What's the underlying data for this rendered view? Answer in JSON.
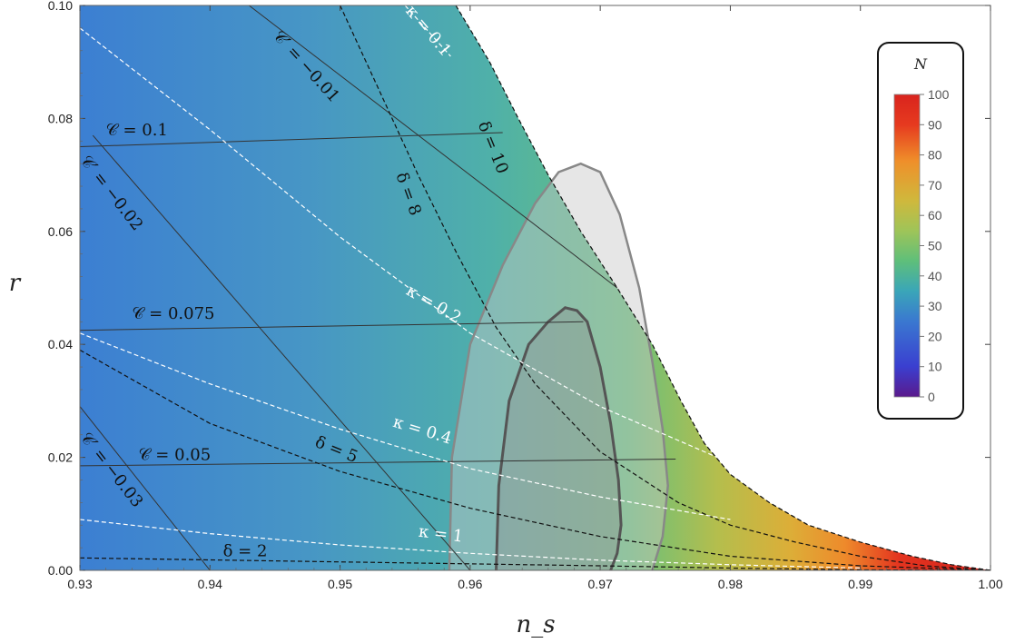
{
  "chart_data": {
    "type": "heatmap",
    "xlabel": "n_s",
    "ylabel": "r",
    "xlim": [
      0.93,
      1.0
    ],
    "ylim": [
      0.0,
      0.1
    ],
    "x_ticks": [
      "0.93",
      "0.94",
      "0.95",
      "0.96",
      "0.97",
      "0.98",
      "0.99",
      "1.00"
    ],
    "y_ticks": [
      "0.00",
      "0.02",
      "0.04",
      "0.06",
      "0.08",
      "0.10"
    ],
    "colorbar": {
      "title": "N",
      "range": [
        0,
        100
      ],
      "ticks": [
        "0",
        "10",
        "20",
        "30",
        "40",
        "50",
        "60",
        "70",
        "80",
        "90",
        "100"
      ],
      "colors": [
        "#5a1a8c",
        "#3a3fd0",
        "#3a78d0",
        "#3aa6b8",
        "#5fbf7a",
        "#9fc458",
        "#d0b83c",
        "#ef8f2a",
        "#e63a1f",
        "#d9241e"
      ]
    },
    "boundary": {
      "name": "delta = 10 edge",
      "x": [
        0.9589,
        0.9615,
        0.9637,
        0.966,
        0.9685,
        0.9713,
        0.974,
        0.9762,
        0.978,
        0.98,
        0.983,
        0.986,
        0.99,
        0.994,
        0.997,
        1.0
      ],
      "y": [
        0.1,
        0.09,
        0.08,
        0.07,
        0.06,
        0.05,
        0.04,
        0.03,
        0.0225,
        0.017,
        0.012,
        0.008,
        0.005,
        0.0025,
        0.001,
        0.0
      ]
    },
    "series": [
      {
        "name": "C = 0.1",
        "style": "solid",
        "x": [
          0.93,
          0.9625
        ],
        "y": [
          0.075,
          0.0775
        ]
      },
      {
        "name": "C = 0.075",
        "style": "solid",
        "x": [
          0.93,
          0.9687
        ],
        "y": [
          0.0425,
          0.044
        ]
      },
      {
        "name": "C = 0.05",
        "style": "solid",
        "x": [
          0.93,
          0.9758
        ],
        "y": [
          0.0185,
          0.0197
        ]
      },
      {
        "name": "C' = -0.01",
        "style": "solid",
        "x": [
          0.943,
          0.9713
        ],
        "y": [
          0.1,
          0.05
        ]
      },
      {
        "name": "C' = -0.02",
        "style": "solid",
        "x": [
          0.931,
          0.96
        ],
        "y": [
          0.077,
          0.0
        ]
      },
      {
        "name": "C' = -0.03",
        "style": "solid",
        "x": [
          0.93,
          0.94
        ],
        "y": [
          0.029,
          0.0
        ]
      },
      {
        "name": "delta = 2",
        "style": "dashed",
        "x": [
          0.93,
          0.95,
          0.97,
          0.98,
          0.99,
          1.0
        ],
        "y": [
          0.0022,
          0.0015,
          0.0008,
          0.0004,
          0.0001,
          0.0
        ]
      },
      {
        "name": "delta = 5",
        "style": "dashed",
        "x": [
          0.93,
          0.94,
          0.95,
          0.96,
          0.97,
          0.98,
          0.99,
          1.0
        ],
        "y": [
          0.039,
          0.026,
          0.0175,
          0.011,
          0.006,
          0.0025,
          0.0008,
          0.0
        ]
      },
      {
        "name": "delta = 8",
        "style": "dashed",
        "x": [
          0.95,
          0.953,
          0.956,
          0.959,
          0.962,
          0.965,
          0.97,
          0.976,
          0.98,
          0.985,
          0.99,
          0.995,
          1.0
        ],
        "y": [
          0.1,
          0.085,
          0.07,
          0.056,
          0.043,
          0.033,
          0.021,
          0.012,
          0.008,
          0.005,
          0.0025,
          0.0008,
          0.0
        ]
      },
      {
        "name": "kappa = 0.1",
        "style": "dashed-white",
        "x": [
          0.955,
          0.9585
        ],
        "y": [
          0.1,
          0.091
        ]
      },
      {
        "name": "kappa = 0.2",
        "style": "dashed-white",
        "x": [
          0.93,
          0.94,
          0.95,
          0.96,
          0.97,
          0.98
        ],
        "y": [
          0.096,
          0.078,
          0.059,
          0.042,
          0.029,
          0.019
        ]
      },
      {
        "name": "kappa = 0.4",
        "style": "dashed-white",
        "x": [
          0.93,
          0.94,
          0.95,
          0.96,
          0.97,
          0.98
        ],
        "y": [
          0.042,
          0.033,
          0.025,
          0.018,
          0.013,
          0.009
        ]
      },
      {
        "name": "kappa = 1",
        "style": "dashed-white",
        "x": [
          0.93,
          0.94,
          0.95,
          0.96,
          0.97,
          0.98,
          0.99
        ],
        "y": [
          0.009,
          0.0065,
          0.0045,
          0.003,
          0.0018,
          0.001,
          0.0004
        ]
      }
    ],
    "regions": [
      {
        "name": "outer contour",
        "color": "#888888",
        "x": [
          0.9584,
          0.9586,
          0.96,
          0.9625,
          0.965,
          0.9668,
          0.9685,
          0.97,
          0.9715,
          0.973,
          0.974,
          0.9748,
          0.9752,
          0.9748,
          0.974
        ],
        "y": [
          0.0,
          0.02,
          0.04,
          0.054,
          0.065,
          0.0705,
          0.072,
          0.0705,
          0.063,
          0.05,
          0.037,
          0.025,
          0.015,
          0.006,
          0.0
        ]
      },
      {
        "name": "inner contour",
        "color": "#555555",
        "x": [
          0.962,
          0.9622,
          0.963,
          0.9645,
          0.966,
          0.9673,
          0.9682,
          0.969,
          0.97,
          0.9708,
          0.9714,
          0.9716,
          0.9713,
          0.9708
        ],
        "y": [
          0.0,
          0.015,
          0.03,
          0.04,
          0.044,
          0.0465,
          0.046,
          0.044,
          0.036,
          0.026,
          0.016,
          0.008,
          0.003,
          0.0
        ]
      }
    ],
    "labels": [
      {
        "text": "𝒞 = 0.1",
        "color": "#111111",
        "x": 0.932,
        "y": 0.077,
        "rotate": 0
      },
      {
        "text": "𝒞 = 0.075",
        "color": "#111111",
        "x": 0.934,
        "y": 0.0445,
        "rotate": 0
      },
      {
        "text": "𝒞 = 0.05",
        "color": "#111111",
        "x": 0.9345,
        "y": 0.0195,
        "rotate": 0
      },
      {
        "text": "𝒞′ = −0.01",
        "color": "#111111",
        "x": 0.9448,
        "y": 0.0945,
        "rotate": 48
      },
      {
        "text": "𝒞′ = −0.02",
        "color": "#111111",
        "x": 0.93,
        "y": 0.0725,
        "rotate": 52
      },
      {
        "text": "𝒞′ = −0.03",
        "color": "#111111",
        "x": 0.93,
        "y": 0.0235,
        "rotate": 52
      },
      {
        "text": "δ = 10",
        "color": "#111111",
        "x": 0.9606,
        "y": 0.079,
        "rotate": 68
      },
      {
        "text": "δ = 8",
        "color": "#111111",
        "x": 0.9543,
        "y": 0.07,
        "rotate": 70
      },
      {
        "text": "δ = 5",
        "color": "#111111",
        "x": 0.948,
        "y": 0.022,
        "rotate": 22
      },
      {
        "text": "δ = 2",
        "color": "#111111",
        "x": 0.941,
        "y": 0.0025,
        "rotate": 0
      },
      {
        "text": "κ = 0.1",
        "color": "#ffffff",
        "x": 0.955,
        "y": 0.099,
        "rotate": 50
      },
      {
        "text": "κ = 0.2",
        "color": "#ffffff",
        "x": 0.955,
        "y": 0.049,
        "rotate": 30
      },
      {
        "text": "κ = 0.4",
        "color": "#ffffff",
        "x": 0.954,
        "y": 0.0255,
        "rotate": 17
      },
      {
        "text": "κ = 1",
        "color": "#ffffff",
        "x": 0.956,
        "y": 0.006,
        "rotate": 7
      }
    ]
  }
}
